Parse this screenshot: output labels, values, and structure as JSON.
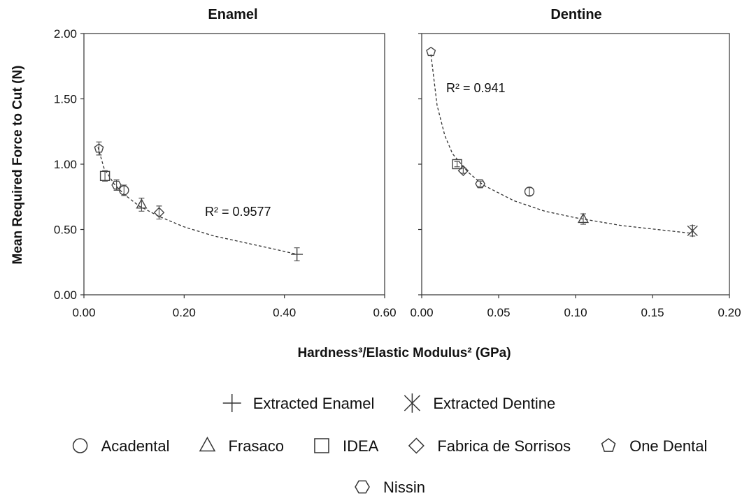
{
  "chart_data": [
    {
      "type": "scatter",
      "title": "Enamel",
      "xlim": [
        0,
        0.6
      ],
      "ylim": [
        0,
        2
      ],
      "xticks": [
        "0.00",
        "0.20",
        "0.40",
        "0.60"
      ],
      "yticks": [
        "0.00",
        "0.50",
        "1.00",
        "1.50",
        "2.00"
      ],
      "grid": false,
      "r2_label": "R² = 0.9577",
      "trendline": "power",
      "series": [
        {
          "name": "Extracted Enamel",
          "marker": "plus",
          "points": [
            {
              "x": 0.425,
              "y": 0.31,
              "err": 0.05
            }
          ]
        },
        {
          "name": "Acadental",
          "marker": "circle",
          "points": [
            {
              "x": 0.08,
              "y": 0.8,
              "err": 0.04
            }
          ]
        },
        {
          "name": "Frasaco",
          "marker": "triangle",
          "points": [
            {
              "x": 0.115,
              "y": 0.69,
              "err": 0.05
            }
          ]
        },
        {
          "name": "IDEA",
          "marker": "square",
          "points": [
            {
              "x": 0.042,
              "y": 0.91,
              "err": 0.04
            }
          ]
        },
        {
          "name": "Fabrica de Sorrisos",
          "marker": "diamond",
          "points": [
            {
              "x": 0.15,
              "y": 0.63,
              "err": 0.05
            }
          ]
        },
        {
          "name": "One Dental",
          "marker": "pentagon",
          "points": [
            {
              "x": 0.03,
              "y": 1.12,
              "err": 0.05
            }
          ]
        },
        {
          "name": "Nissin",
          "marker": "hexagon",
          "points": [
            {
              "x": 0.065,
              "y": 0.84,
              "err": 0.04
            }
          ]
        }
      ],
      "trend_points": [
        {
          "x": 0.028,
          "y": 1.13
        },
        {
          "x": 0.04,
          "y": 0.97
        },
        {
          "x": 0.06,
          "y": 0.85
        },
        {
          "x": 0.08,
          "y": 0.77
        },
        {
          "x": 0.11,
          "y": 0.68
        },
        {
          "x": 0.15,
          "y": 0.6
        },
        {
          "x": 0.2,
          "y": 0.52
        },
        {
          "x": 0.26,
          "y": 0.45
        },
        {
          "x": 0.32,
          "y": 0.4
        },
        {
          "x": 0.38,
          "y": 0.35
        },
        {
          "x": 0.425,
          "y": 0.31
        }
      ]
    },
    {
      "type": "scatter",
      "title": "Dentine",
      "xlim": [
        0,
        0.2
      ],
      "ylim": [
        0,
        2
      ],
      "xticks": [
        "0.00",
        "0.05",
        "0.10",
        "0.15",
        "0.20"
      ],
      "yticks": [
        "0.00",
        "0.50",
        "1.00",
        "1.50",
        "2.00"
      ],
      "grid": false,
      "r2_label": "R² = 0.941",
      "trendline": "power",
      "series": [
        {
          "name": "Extracted Dentine",
          "marker": "asterisk",
          "points": [
            {
              "x": 0.176,
              "y": 0.49,
              "err": 0.04
            }
          ]
        },
        {
          "name": "Acadental",
          "marker": "circle",
          "points": [
            {
              "x": 0.07,
              "y": 0.79,
              "err": 0.03
            }
          ]
        },
        {
          "name": "Frasaco",
          "marker": "triangle",
          "points": [
            {
              "x": 0.105,
              "y": 0.58,
              "err": 0.04
            }
          ]
        },
        {
          "name": "IDEA",
          "marker": "square",
          "points": [
            {
              "x": 0.023,
              "y": 1.0,
              "err": 0.02
            }
          ]
        },
        {
          "name": "Fabrica de Sorrisos",
          "marker": "diamond",
          "points": [
            {
              "x": 0.027,
              "y": 0.95,
              "err": 0.02
            }
          ]
        },
        {
          "name": "One Dental",
          "marker": "pentagon",
          "points": [
            {
              "x": 0.006,
              "y": 1.86,
              "err": 0.0
            }
          ]
        },
        {
          "name": "Nissin",
          "marker": "hexagon",
          "points": [
            {
              "x": 0.038,
              "y": 0.85,
              "err": 0.02
            }
          ]
        }
      ],
      "trend_points": [
        {
          "x": 0.006,
          "y": 1.84
        },
        {
          "x": 0.01,
          "y": 1.45
        },
        {
          "x": 0.015,
          "y": 1.22
        },
        {
          "x": 0.02,
          "y": 1.08
        },
        {
          "x": 0.03,
          "y": 0.94
        },
        {
          "x": 0.04,
          "y": 0.84
        },
        {
          "x": 0.06,
          "y": 0.72
        },
        {
          "x": 0.08,
          "y": 0.64
        },
        {
          "x": 0.1,
          "y": 0.59
        },
        {
          "x": 0.13,
          "y": 0.53
        },
        {
          "x": 0.176,
          "y": 0.47
        }
      ]
    }
  ],
  "shared": {
    "ylabel": "Mean Required Force to Cut (N)",
    "xlabel": "Hardness³/Elastic Modulus² (GPa)"
  },
  "legend": {
    "placement": "bottom",
    "rows": [
      [
        {
          "label": "Extracted Enamel",
          "marker": "plus"
        },
        {
          "label": "Extracted Dentine",
          "marker": "asterisk"
        }
      ],
      [
        {
          "label": "Acadental",
          "marker": "circle"
        },
        {
          "label": "Frasaco",
          "marker": "triangle"
        },
        {
          "label": "IDEA",
          "marker": "square"
        },
        {
          "label": "Fabrica de Sorrisos",
          "marker": "diamond"
        },
        {
          "label": "One Dental",
          "marker": "pentagon"
        }
      ],
      [
        {
          "label": "Nissin",
          "marker": "hexagon"
        }
      ]
    ]
  },
  "colors": {
    "marker": "#444444",
    "axis": "#333333",
    "background": "#ffffff"
  }
}
